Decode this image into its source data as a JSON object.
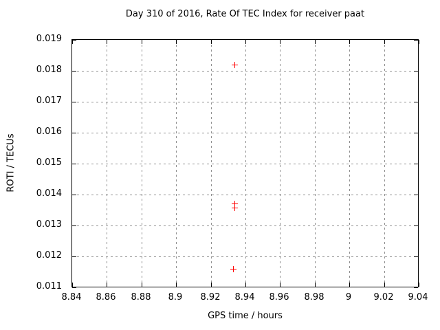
{
  "chart_data": {
    "type": "scatter",
    "title": "Day 310 of 2016, Rate Of TEC Index for receiver paat",
    "xlabel": "GPS time / hours",
    "ylabel": "ROTI / TECUs",
    "xlim": [
      8.84,
      9.04
    ],
    "ylim": [
      0.011,
      0.019
    ],
    "x_ticks": [
      8.84,
      8.86,
      8.88,
      8.9,
      8.92,
      8.94,
      8.96,
      8.98,
      9,
      9.02,
      9.04
    ],
    "x_tick_labels": [
      "8.84",
      "8.86",
      "8.88",
      "8.9",
      "8.92",
      "8.94",
      "8.96",
      "8.98",
      "9",
      "9.02",
      "9.04"
    ],
    "y_ticks": [
      0.011,
      0.012,
      0.013,
      0.014,
      0.015,
      0.016,
      0.017,
      0.018,
      0.019
    ],
    "y_tick_labels": [
      "0.011",
      "0.012",
      "0.013",
      "0.014",
      "0.015",
      "0.016",
      "0.017",
      "0.018",
      "0.019"
    ],
    "grid": true,
    "legend": "none",
    "marker": "plus",
    "series": [
      {
        "name": "ROTI",
        "points": [
          [
            8.934,
            0.0182
          ],
          [
            8.934,
            0.0137
          ],
          [
            8.934,
            0.01357
          ],
          [
            8.933,
            0.0116
          ]
        ]
      }
    ]
  },
  "colors": {
    "marker": "#ff0000",
    "grid": "#8f8f8f",
    "border": "#000000",
    "background": "#ffffff",
    "text": "#000000"
  }
}
